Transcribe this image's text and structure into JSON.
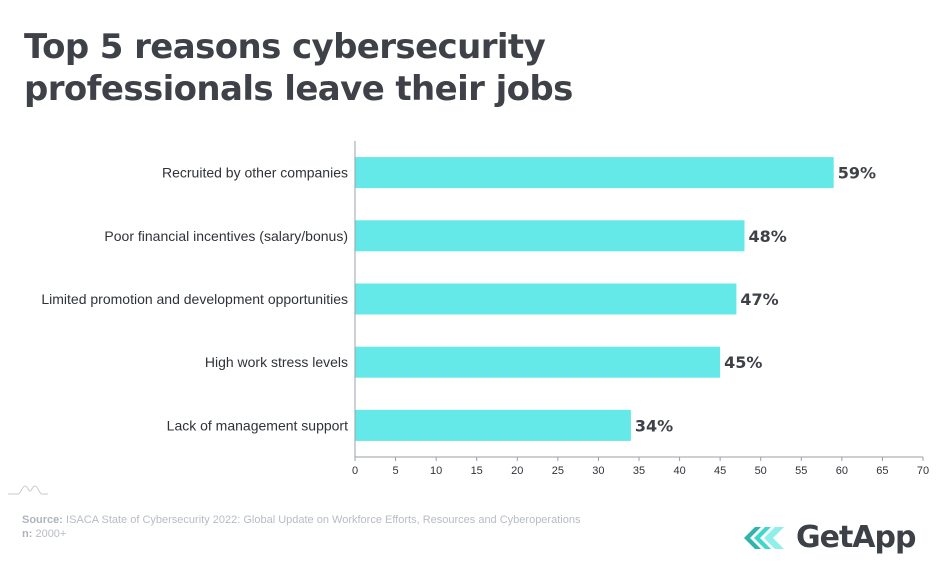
{
  "colors": {
    "bar": "#64e8e8",
    "axis": "#9aa0a8",
    "title": "#3e4248",
    "brand_teal": "#3fd6cc",
    "brand_teal_dark": "#2fb3ab"
  },
  "chart_data": {
    "type": "bar",
    "orientation": "horizontal",
    "title": "Top 5 reasons cybersecurity professionals leave their jobs",
    "categories": [
      "Recruited by other companies",
      "Poor financial incentives (salary/bonus)",
      "Limited promotion and development opportunities",
      "High work stress levels",
      "Lack of management support"
    ],
    "values": [
      59,
      48,
      47,
      45,
      34
    ],
    "value_labels": [
      "59%",
      "48%",
      "47%",
      "45%",
      "34%"
    ],
    "xlim": [
      0,
      70
    ],
    "xticks": [
      0,
      5,
      10,
      15,
      20,
      25,
      30,
      35,
      40,
      45,
      50,
      55,
      60,
      65,
      70
    ],
    "xlabel": "",
    "ylabel": "",
    "grid": false,
    "legend": "none"
  },
  "footer": {
    "source_label": "Source:",
    "source_text": "ISACA State of Cybersecurity 2022: Global Update on Workforce Efforts, Resources and Cyberoperations",
    "n_label": "n:",
    "n_text": "2000+"
  },
  "brand": {
    "name": "GetApp",
    "logo_icon": "getapp-chevrons-icon"
  },
  "decoration": {
    "watermark_icon": "wave-icon"
  }
}
